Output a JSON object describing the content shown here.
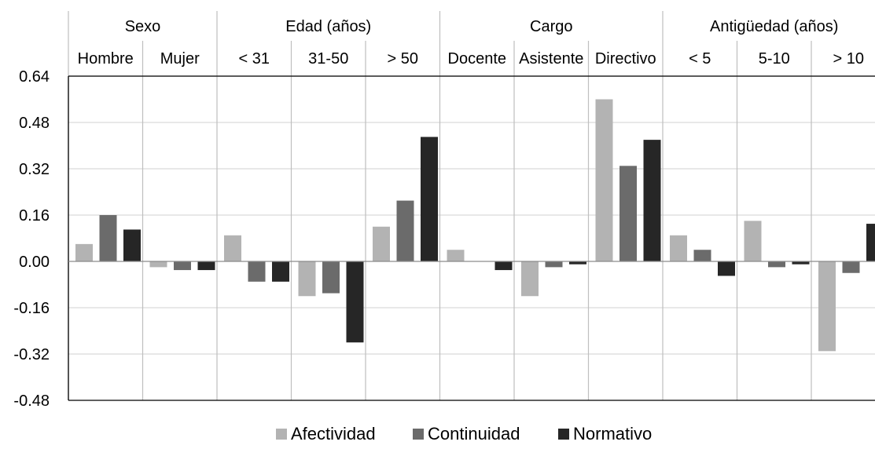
{
  "chart_data": {
    "type": "bar",
    "groups": [
      {
        "label": "Sexo",
        "categories": [
          "Hombre",
          "Mujer"
        ]
      },
      {
        "label": "Edad (años)",
        "categories": [
          "< 31",
          "31-50",
          "> 50"
        ]
      },
      {
        "label": "Cargo",
        "categories": [
          "Docente",
          "Asistente",
          "Directivo"
        ]
      },
      {
        "label": "Antigüedad (años)",
        "categories": [
          "< 5",
          "5-10",
          "> 10"
        ]
      }
    ],
    "categories": [
      "Hombre",
      "Mujer",
      "< 31",
      "31-50",
      "> 50",
      "Docente",
      "Asistente",
      "Directivo",
      "< 5",
      "5-10",
      "> 10"
    ],
    "series": [
      {
        "name": "Afectividad",
        "color": "#b3b3b3",
        "values": [
          0.06,
          -0.02,
          0.09,
          -0.12,
          0.12,
          0.04,
          -0.12,
          0.56,
          0.09,
          0.14,
          -0.31
        ]
      },
      {
        "name": "Continuidad",
        "color": "#6b6b6b",
        "values": [
          0.16,
          -0.03,
          -0.07,
          -0.11,
          0.21,
          0.0,
          -0.02,
          0.33,
          0.04,
          -0.02,
          -0.04
        ]
      },
      {
        "name": "Normativo",
        "color": "#262626",
        "values": [
          0.11,
          -0.03,
          -0.07,
          -0.28,
          0.43,
          -0.03,
          -0.01,
          0.42,
          -0.05,
          -0.01,
          0.13
        ]
      }
    ],
    "yticks": [
      "0.64",
      "0.48",
      "0.32",
      "0.16",
      "0.00",
      "-0.16",
      "-0.32",
      "-0.48"
    ],
    "ylim": [
      -0.48,
      0.64
    ],
    "grid": true,
    "legend": "bottom"
  }
}
